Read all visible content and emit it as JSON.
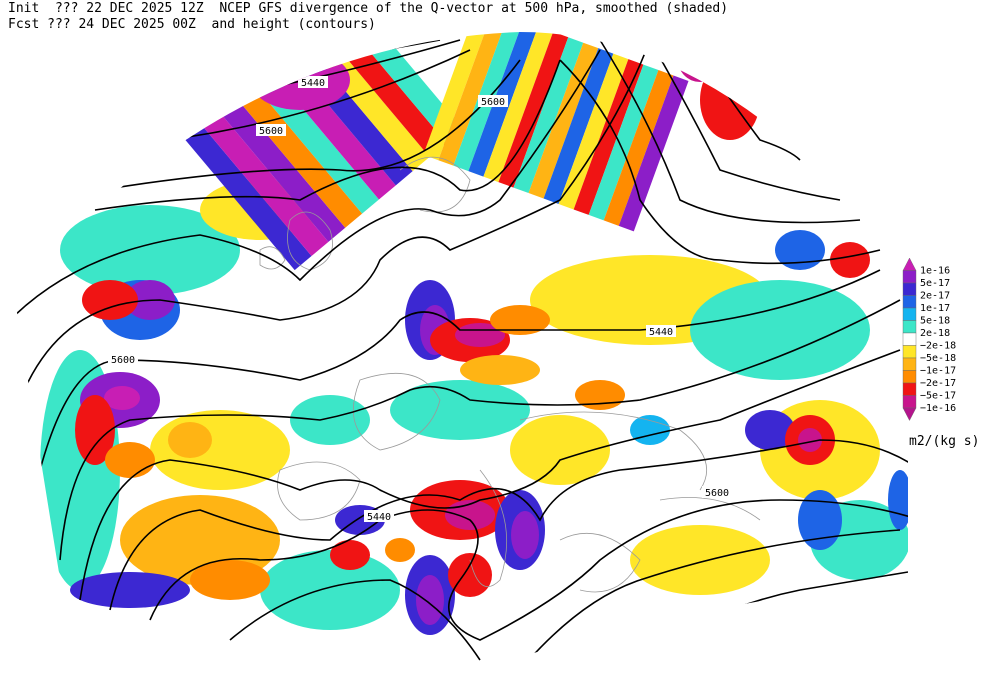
{
  "header": {
    "line1_left": "Init  ??? 22 DEC 2025 12Z",
    "line1_right": "NCEP GFS divergence of the Q-vector at 500 hPa, smoothed (shaded)",
    "line2_left": "Fcst ??? 24 DEC 2025 00Z",
    "line2_right": "and height (contours)"
  },
  "contour_labels": [
    "5440",
    "5600",
    "5600",
    "5440",
    "5600",
    "5440",
    "5600"
  ],
  "colorbar": {
    "units": "m2/(kg s)",
    "labels": [
      "1e-16",
      "5e-17",
      "2e-17",
      "1e-17",
      "5e-18",
      "2e-18",
      "−2e-18",
      "−5e-18",
      "−1e-17",
      "−2e-17",
      "−5e-17",
      "−1e-16"
    ],
    "colors": [
      "#c81eb4",
      "#8c1ec8",
      "#3c28d2",
      "#1e64e6",
      "#14b4f0",
      "#3ce6c8",
      "#ffffff",
      "#ffe628",
      "#ffb414",
      "#ff8c00",
      "#f01414",
      "#c8148c",
      "#b4148c"
    ]
  }
}
